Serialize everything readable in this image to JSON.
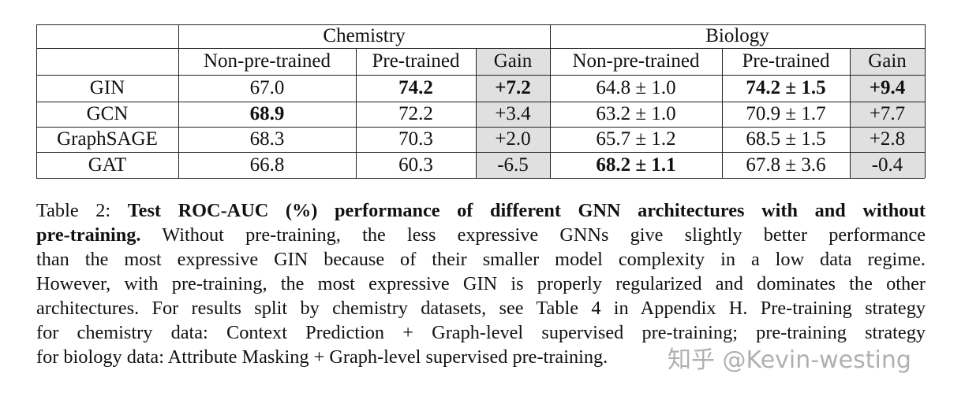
{
  "table": {
    "groups": [
      "Chemistry",
      "Biology"
    ],
    "subheaders": [
      "Non-pre-trained",
      "Pre-trained",
      "Gain",
      "Non-pre-trained",
      "Pre-trained",
      "Gain"
    ],
    "rows": [
      {
        "model": "GIN",
        "cells": [
          "67.0",
          "74.2",
          "+7.2",
          "64.8 ± 1.0",
          "74.2 ± 1.5",
          "+9.4"
        ],
        "bold": [
          false,
          true,
          true,
          false,
          true,
          true
        ]
      },
      {
        "model": "GCN",
        "cells": [
          "68.9",
          "72.2",
          "+3.4",
          "63.2 ± 1.0",
          "70.9 ± 1.7",
          "+7.7"
        ],
        "bold": [
          true,
          false,
          false,
          false,
          false,
          false
        ]
      },
      {
        "model": "GraphSAGE",
        "cells": [
          "68.3",
          "70.3",
          "+2.0",
          "65.7 ± 1.2",
          "68.5 ± 1.5",
          "+2.8"
        ],
        "bold": [
          false,
          false,
          false,
          false,
          false,
          false
        ]
      },
      {
        "model": "GAT",
        "cells": [
          "66.8",
          "60.3",
          "-6.5",
          "68.2 ± 1.1",
          "67.8 ± 3.6",
          "-0.4"
        ],
        "bold": [
          false,
          false,
          false,
          true,
          false,
          false
        ]
      }
    ]
  },
  "caption": {
    "label": "Table 2:",
    "bold_title": "Test ROC-AUC (%) performance of different GNN architectures with and without pre-training.",
    "lines": [
      [
        "Table 2: ",
        "Test ROC-AUC (%) performance of different GNN architectures with and without"
      ],
      [
        "pre-training.",
        " Without pre-training, the less expressive GNNs give slightly better performance"
      ],
      [
        "",
        "than the most expressive GIN because of their smaller model complexity in a low data regime."
      ],
      [
        "",
        "However, with pre-training, the most expressive GIN is properly regularized and dominates the other"
      ],
      [
        "",
        "architectures. For results split by chemistry datasets, see Table 4 in Appendix H. Pre-training strategy"
      ],
      [
        "",
        "for chemistry data: Context Prediction + Graph-level supervised pre-training; pre-training strategy"
      ],
      [
        "",
        "for biology data: Attribute Masking + Graph-level supervised pre-training."
      ]
    ]
  },
  "watermark": "知乎 @Kevin-westing"
}
